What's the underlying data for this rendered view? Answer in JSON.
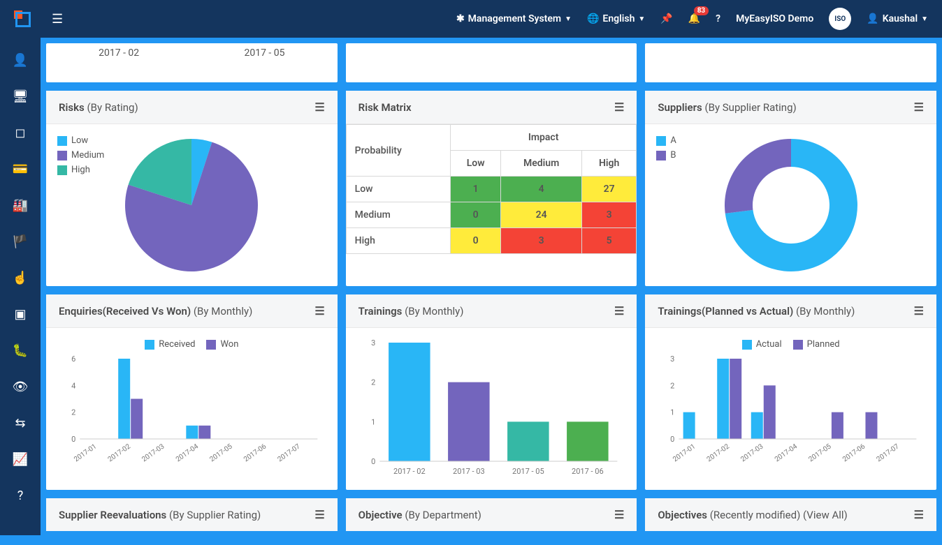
{
  "topbar": {
    "management_label": "Management System",
    "language_label": "English",
    "notif_count": "83",
    "demo_label": "MyEasyISO Demo",
    "user_label": "Kaushal"
  },
  "top_row": {
    "labels": [
      "2017 - 02",
      "2017 - 05"
    ]
  },
  "risks_pie": {
    "title": "Risks",
    "subtitle": "(By Rating)",
    "legend": [
      "Low",
      "Medium",
      "High"
    ],
    "colors": [
      "#29b6f6",
      "#7365bd",
      "#35b8a5"
    ],
    "values": [
      5,
      75,
      20
    ]
  },
  "risk_matrix": {
    "title": "Risk Matrix",
    "impact_label": "Impact",
    "prob_label": "Probability",
    "cols": [
      "Low",
      "Medium",
      "High"
    ],
    "rows": [
      {
        "label": "Low",
        "cells": [
          {
            "v": "1",
            "c": "g"
          },
          {
            "v": "4",
            "c": "g"
          },
          {
            "v": "27",
            "c": "y"
          }
        ]
      },
      {
        "label": "Medium",
        "cells": [
          {
            "v": "0",
            "c": "g"
          },
          {
            "v": "24",
            "c": "y"
          },
          {
            "v": "3",
            "c": "r"
          }
        ]
      },
      {
        "label": "High",
        "cells": [
          {
            "v": "0",
            "c": "y"
          },
          {
            "v": "3",
            "c": "r"
          },
          {
            "v": "5",
            "c": "r"
          }
        ]
      }
    ]
  },
  "suppliers_donut": {
    "title": "Suppliers",
    "subtitle": "(By Supplier Rating)",
    "legend": [
      "A",
      "B"
    ],
    "colors": [
      "#29b6f6",
      "#7365bd"
    ],
    "values": [
      73,
      27
    ]
  },
  "enquiries_chart": {
    "title": "Enquiries(Received Vs Won)",
    "subtitle": "(By Monthly)",
    "legend": [
      "Received",
      "Won"
    ],
    "colors": [
      "#29b6f6",
      "#7365bd"
    ],
    "categories": [
      "2017-01",
      "2017-02",
      "2017-03",
      "2017-04",
      "2017-05",
      "2017-06",
      "2017-07"
    ],
    "series": [
      [
        0,
        6,
        0,
        1,
        0,
        0,
        0
      ],
      [
        0,
        3,
        0,
        1,
        0,
        0,
        0
      ]
    ],
    "ymax": 6,
    "ystep": 2
  },
  "trainings_chart": {
    "title": "Trainings",
    "subtitle": "(By Monthly)",
    "categories": [
      "2017 - 02",
      "2017 - 03",
      "2017 - 05",
      "2017 - 06"
    ],
    "values": [
      3,
      2,
      1,
      1
    ],
    "colors": [
      "#29b6f6",
      "#7365bd",
      "#35b8a5",
      "#4caf50"
    ],
    "ymax": 3,
    "ystep": 1
  },
  "trainings_pa_chart": {
    "title": "Trainings(Planned vs Actual)",
    "subtitle": "(By Monthly)",
    "legend": [
      "Actual",
      "Planned"
    ],
    "colors": [
      "#29b6f6",
      "#7365bd"
    ],
    "categories": [
      "2017-01",
      "2017-02",
      "2017-03",
      "2017-04",
      "2017-05",
      "2017-06",
      "2017-07"
    ],
    "series": [
      [
        1,
        3,
        1,
        0,
        0,
        0,
        0
      ],
      [
        0,
        3,
        2,
        0,
        1,
        1,
        0
      ]
    ],
    "ymax": 3,
    "ystep": 1
  },
  "bottom_stubs": {
    "supplier_reval": {
      "t1": "Supplier Reevaluations",
      "t2": "(By Supplier Rating)"
    },
    "objective_dept": {
      "t1": "Objective",
      "t2": "(By Department)"
    },
    "objectives_recent": {
      "t1": "Objectives",
      "t2": "(Recently modified)",
      "t3": "(View All)"
    }
  }
}
